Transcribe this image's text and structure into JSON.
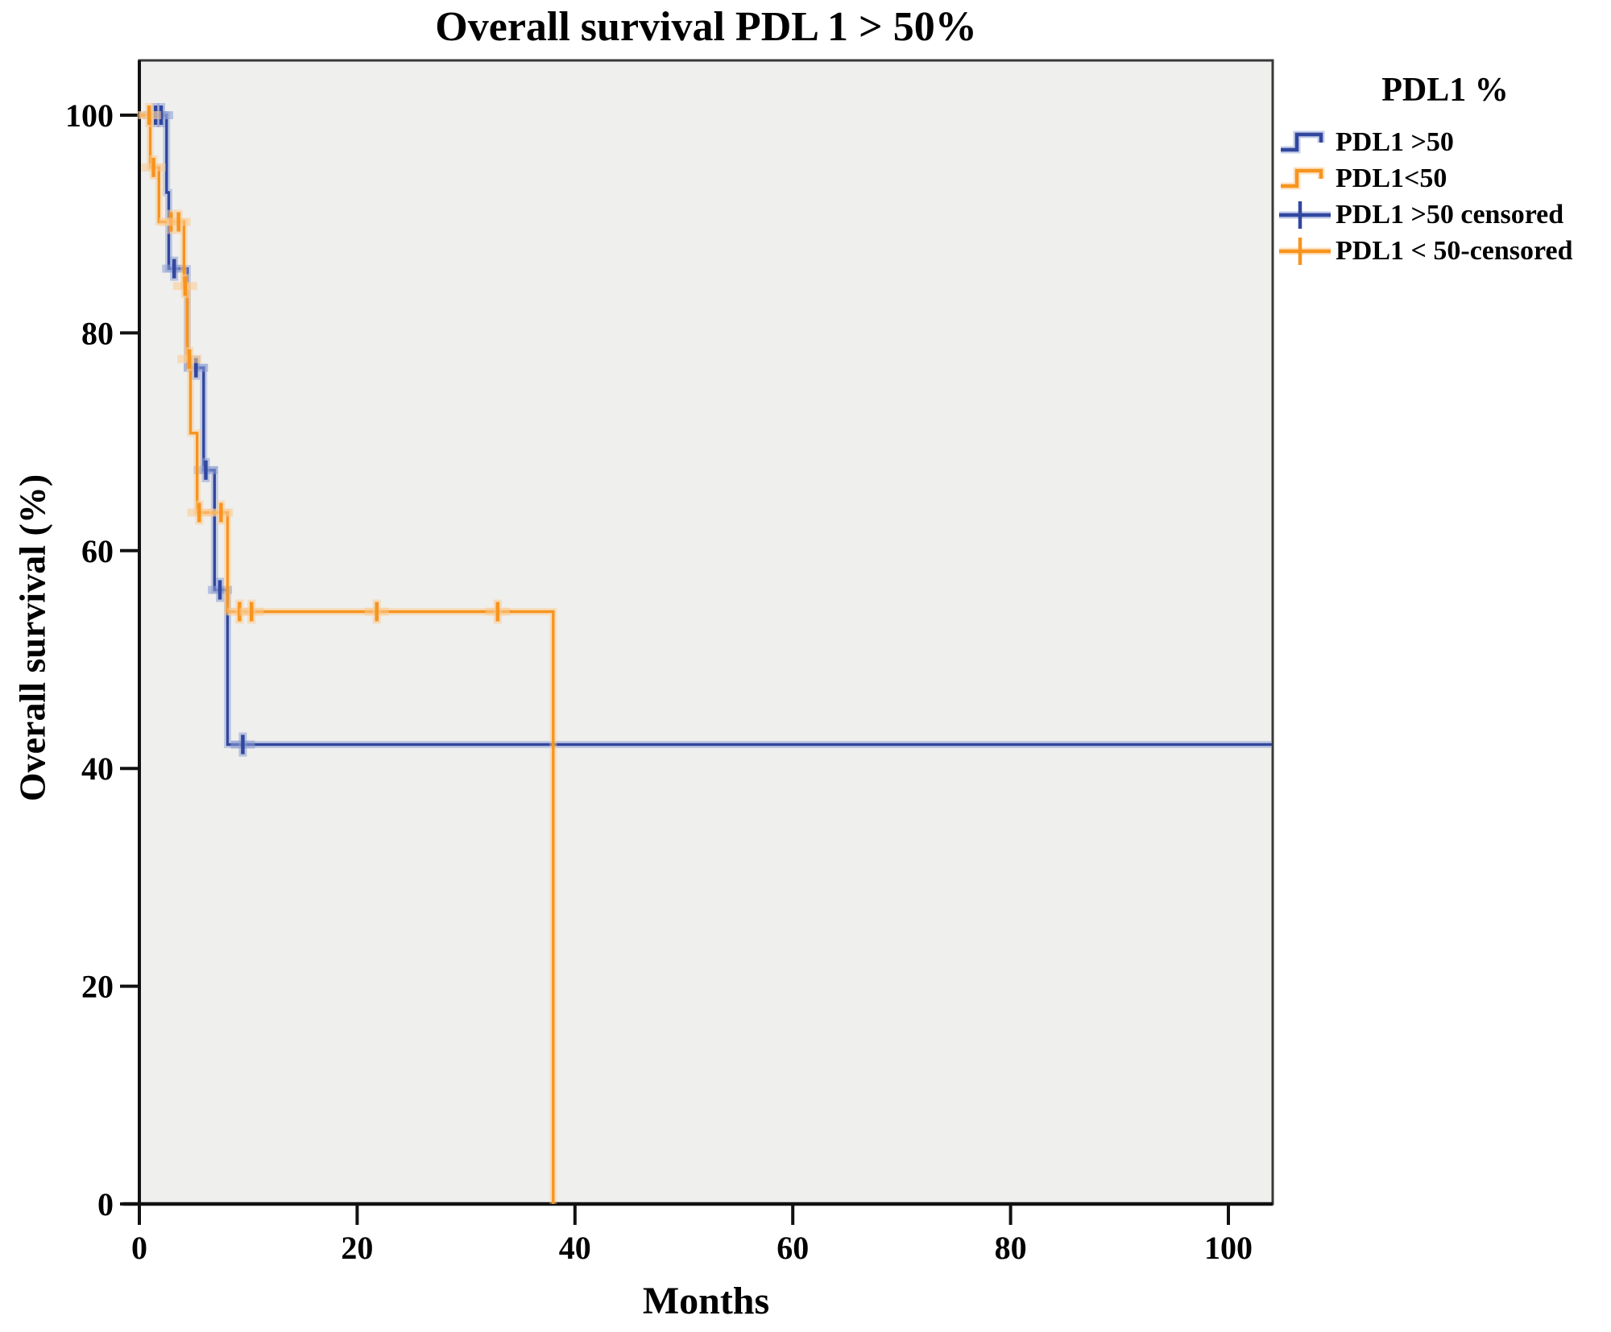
{
  "title": "Overall survival PDL 1 > 50%",
  "colors": {
    "blue": "#31479F",
    "blue_light": "#8C9DD3",
    "orange": "#F7941E",
    "orange_light": "#FBCA8F",
    "plot_bg": "#EFEFED",
    "frame": "#383838",
    "axis": "#111111",
    "text": "#000000",
    "background": "#FFFFFF"
  },
  "legend": {
    "title": "PDL1 %",
    "entries": [
      {
        "label": "PDL1 >50",
        "series": "blue",
        "kind": "step"
      },
      {
        "label": "PDL1<50",
        "series": "orange",
        "kind": "step"
      },
      {
        "label": "PDL1 >50 censored",
        "series": "blue",
        "kind": "censored"
      },
      {
        "label": "PDL1 < 50-censored",
        "series": "orange",
        "kind": "censored"
      }
    ]
  },
  "chart_data": {
    "type": "line",
    "subtype": "kaplan-meier-step",
    "title": "Overall survival PDL 1 > 50%",
    "xlabel": "Months",
    "ylabel": "Overall survival (%)",
    "xlim": [
      0,
      104
    ],
    "ylim": [
      0,
      105
    ],
    "x_ticks": [
      0,
      20,
      40,
      60,
      80,
      100
    ],
    "y_ticks": [
      100,
      80,
      60,
      40,
      20,
      0
    ],
    "grid": false,
    "legend_position": "right",
    "series": [
      {
        "name": "PDL1 >50",
        "color_key": "blue",
        "steps": [
          [
            0,
            100
          ],
          [
            2.5,
            100
          ],
          [
            2.5,
            92.9
          ],
          [
            2.7,
            92.9
          ],
          [
            2.7,
            85.9
          ],
          [
            4.4,
            85.9
          ],
          [
            4.4,
            76.8
          ],
          [
            5.9,
            76.8
          ],
          [
            5.9,
            67.4
          ],
          [
            6.9,
            67.4
          ],
          [
            6.9,
            56.4
          ],
          [
            8.1,
            56.4
          ],
          [
            8.1,
            42.2
          ],
          [
            104,
            42.2
          ]
        ],
        "censored": [
          [
            1.5,
            100
          ],
          [
            2.0,
            100
          ],
          [
            3.2,
            85.9
          ],
          [
            5.2,
            76.8
          ],
          [
            6.1,
            67.4
          ],
          [
            7.4,
            56.4
          ],
          [
            9.5,
            42.2
          ]
        ]
      },
      {
        "name": "PDL1<50",
        "color_key": "orange",
        "steps": [
          [
            0,
            100
          ],
          [
            1.0,
            100
          ],
          [
            1.0,
            95.2
          ],
          [
            1.8,
            95.2
          ],
          [
            1.8,
            90.2
          ],
          [
            4.1,
            90.2
          ],
          [
            4.1,
            84.3
          ],
          [
            4.4,
            84.3
          ],
          [
            4.4,
            77.6
          ],
          [
            4.7,
            77.6
          ],
          [
            4.7,
            70.8
          ],
          [
            5.3,
            70.8
          ],
          [
            5.3,
            63.5
          ],
          [
            8.1,
            63.5
          ],
          [
            8.1,
            54.4
          ],
          [
            38,
            54.4
          ],
          [
            38,
            0
          ]
        ],
        "censored": [
          [
            0.9,
            100
          ],
          [
            1.3,
            95.2
          ],
          [
            2.9,
            90.2
          ],
          [
            3.6,
            90.2
          ],
          [
            4.2,
            84.3
          ],
          [
            4.6,
            77.6
          ],
          [
            5.5,
            63.5
          ],
          [
            7.5,
            63.5
          ],
          [
            9.2,
            54.4
          ],
          [
            10.3,
            54.4
          ],
          [
            21.8,
            54.4
          ],
          [
            32.9,
            54.4
          ]
        ]
      }
    ]
  }
}
